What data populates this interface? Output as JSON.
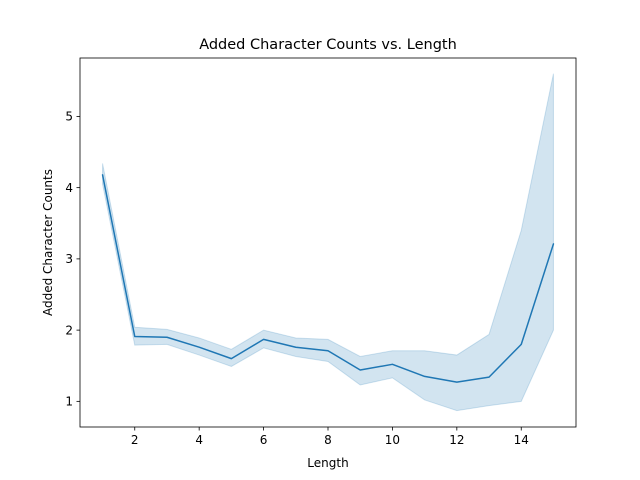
{
  "chart_data": {
    "type": "line",
    "title": "Added Character Counts vs. Length",
    "xlabel": "Length",
    "ylabel": "Added Character Counts",
    "xlim": [
      0.3,
      15.7
    ],
    "ylim": [
      0.64,
      5.82
    ],
    "xticks": [
      2,
      4,
      6,
      8,
      10,
      12,
      14
    ],
    "yticks": [
      1,
      2,
      3,
      4,
      5
    ],
    "grid": false,
    "series": [
      {
        "x": [
          1,
          2,
          3,
          4,
          5,
          6,
          7,
          8,
          9,
          10,
          11,
          12,
          13,
          14,
          15
        ],
        "values": [
          4.18,
          1.91,
          1.9,
          1.76,
          1.6,
          1.87,
          1.76,
          1.71,
          1.44,
          1.52,
          1.35,
          1.27,
          1.34,
          1.8,
          3.21
        ],
        "ci_lower": [
          4.05,
          1.79,
          1.8,
          1.65,
          1.49,
          1.75,
          1.63,
          1.56,
          1.23,
          1.33,
          1.02,
          0.87,
          0.94,
          1.0,
          2.0
        ],
        "ci_upper": [
          4.34,
          2.04,
          2.01,
          1.89,
          1.73,
          2.0,
          1.89,
          1.87,
          1.63,
          1.71,
          1.71,
          1.65,
          1.94,
          3.4,
          5.6
        ],
        "color": "#1f77b4",
        "band_color": "#1f77b4"
      }
    ]
  }
}
